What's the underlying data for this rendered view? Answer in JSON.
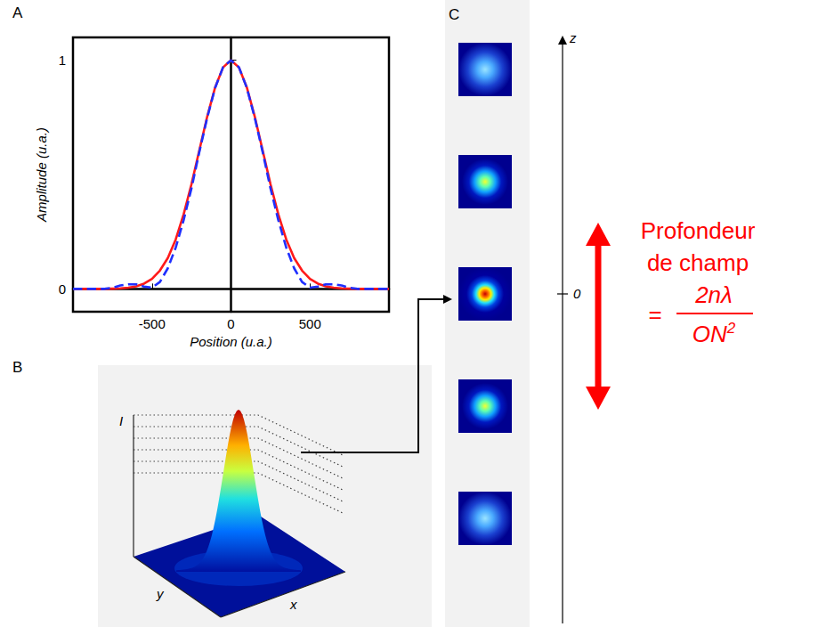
{
  "panels": [
    "A",
    "B",
    "C"
  ],
  "chart_data": {
    "type": "line",
    "xlabel": "Position (u.a.)",
    "ylabel": "Amplitude (u.a.)",
    "x": [
      -1000,
      -950,
      -900,
      -850,
      -800,
      -750,
      -700,
      -650,
      -600,
      -550,
      -500,
      -450,
      -400,
      -350,
      -300,
      -250,
      -200,
      -150,
      -100,
      -50,
      0,
      50,
      100,
      150,
      200,
      250,
      300,
      350,
      400,
      450,
      500,
      550,
      600,
      650,
      700,
      750,
      800,
      850,
      900,
      950,
      1000
    ],
    "series": [
      {
        "color": "#ff1a1a",
        "line_style": "solid",
        "values": [
          0,
          0,
          0,
          0,
          0,
          0.001,
          0.002,
          0.005,
          0.011,
          0.023,
          0.044,
          0.08,
          0.135,
          0.216,
          0.325,
          0.458,
          0.607,
          0.755,
          0.882,
          0.969,
          1,
          0.969,
          0.882,
          0.755,
          0.607,
          0.458,
          0.325,
          0.216,
          0.135,
          0.08,
          0.044,
          0.023,
          0.011,
          0.005,
          0.002,
          0.001,
          0,
          0,
          0,
          0,
          0
        ]
      },
      {
        "color": "#1f2fff",
        "line_style": "dashed",
        "values": [
          0,
          0,
          0,
          0,
          0,
          0.005,
          0.015,
          0.02,
          0.02,
          0.01,
          0.005,
          0.03,
          0.09,
          0.18,
          0.3,
          0.44,
          0.6,
          0.75,
          0.88,
          0.97,
          1,
          0.97,
          0.88,
          0.75,
          0.6,
          0.44,
          0.3,
          0.18,
          0.09,
          0.03,
          0.005,
          0.01,
          0.02,
          0.02,
          0.015,
          0.005,
          0,
          0,
          0,
          0,
          0
        ]
      }
    ],
    "xlim": [
      -1000,
      1000
    ],
    "ylim": [
      -0.1,
      1.1
    ],
    "xticks": [
      -500,
      0,
      500
    ],
    "yticks": [
      0,
      1
    ],
    "grid": false
  },
  "surface": {
    "axis_labels": {
      "vertical": "I",
      "depth": "y",
      "horizontal": "x"
    }
  },
  "focal_stack": {
    "axis_label": "z",
    "tick": 0,
    "images": 5
  },
  "annotation": {
    "lines": [
      "Profondeur",
      "de champ"
    ],
    "formula": {
      "prefix": "=",
      "numerator": "2nλ",
      "denominator": "ON",
      "exponent": "2"
    }
  }
}
